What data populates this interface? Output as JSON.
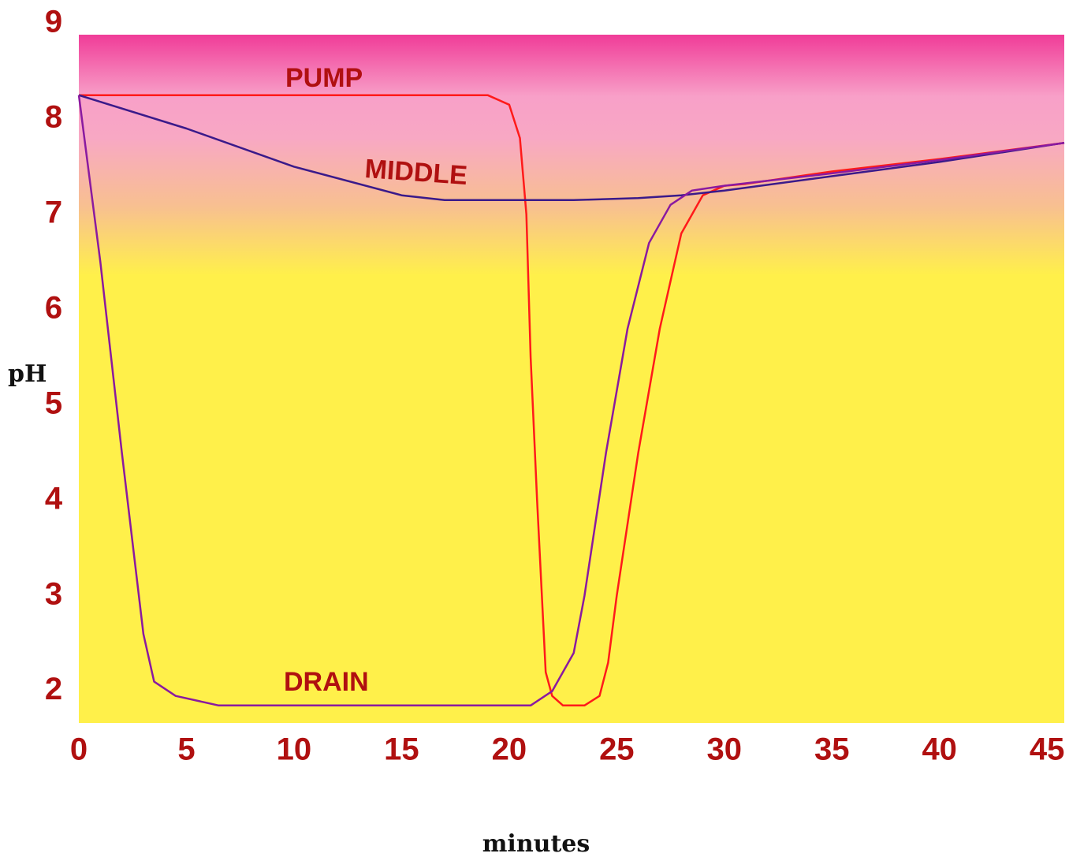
{
  "chart_data": {
    "type": "line",
    "xlabel": "minutes",
    "ylabel": "pH",
    "xlim": [
      0,
      45.8
    ],
    "ylim": [
      1.65,
      9
    ],
    "xticks": [
      0,
      5,
      10,
      15,
      20,
      25,
      30,
      35,
      40,
      45
    ],
    "yticks": [
      2,
      3,
      4,
      5,
      6,
      7,
      8,
      9
    ],
    "series": [
      {
        "name": "PUMP",
        "color": "#ff1a1a",
        "x": [
          0,
          19,
          20,
          20.5,
          20.8,
          21,
          21.3,
          21.7,
          22,
          22.5,
          23.5,
          24.2,
          24.6,
          25,
          26,
          27,
          28,
          29,
          30,
          31,
          35,
          40,
          45.8
        ],
        "values": [
          8.25,
          8.25,
          8.15,
          7.8,
          7,
          5.5,
          4,
          2.2,
          1.95,
          1.85,
          1.85,
          1.95,
          2.3,
          3,
          4.5,
          5.8,
          6.8,
          7.2,
          7.3,
          7.32,
          7.45,
          7.58,
          7.75
        ]
      },
      {
        "name": "MIDDLE",
        "color": "#3a1a8a",
        "x": [
          0,
          5,
          10,
          15,
          17,
          20,
          23,
          26,
          28,
          30,
          35,
          40,
          45.8
        ],
        "values": [
          8.25,
          7.9,
          7.5,
          7.2,
          7.15,
          7.15,
          7.15,
          7.17,
          7.2,
          7.25,
          7.4,
          7.55,
          7.75
        ]
      },
      {
        "name": "DRAIN",
        "color": "#8a1aa0",
        "x": [
          0,
          1,
          2,
          3,
          3.5,
          4.5,
          6.5,
          20,
          21,
          22,
          23,
          23.5,
          24.5,
          25.5,
          26.5,
          27.5,
          28.5,
          30,
          35,
          40,
          45.8
        ],
        "values": [
          8.25,
          6.5,
          4.5,
          2.6,
          2.1,
          1.95,
          1.85,
          1.85,
          1.85,
          2.0,
          2.4,
          3,
          4.5,
          5.8,
          6.7,
          7.1,
          7.25,
          7.3,
          7.43,
          7.57,
          7.75
        ]
      }
    ]
  }
}
